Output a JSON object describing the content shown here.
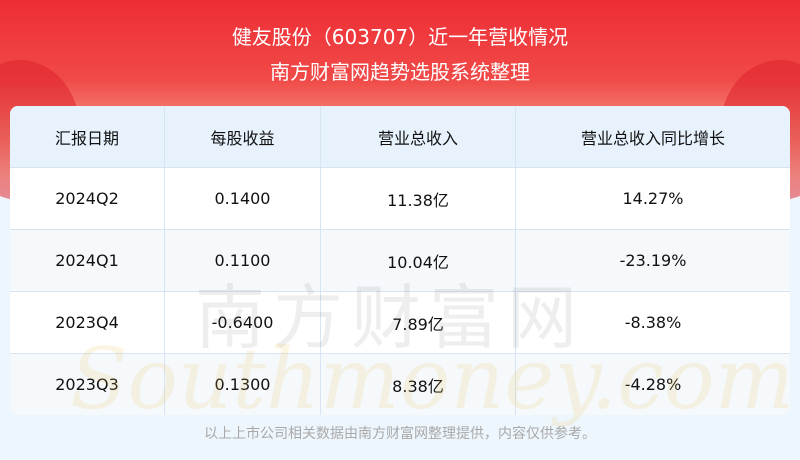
{
  "header": {
    "title": "健友股份（603707）近一年营收情况",
    "subtitle": "南方财富网趋势选股系统整理"
  },
  "table": {
    "columns": [
      "汇报日期",
      "每股收益",
      "营业总收入",
      "营业总收入同比增长"
    ],
    "rows": [
      [
        "2024Q2",
        "0.1400",
        "11.38亿",
        "14.27%"
      ],
      [
        "2024Q1",
        "0.1100",
        "10.04亿",
        "-23.19%"
      ],
      [
        "2023Q4",
        "-0.6400",
        "7.89亿",
        "-8.38%"
      ],
      [
        "2023Q3",
        "0.1300",
        "8.38亿",
        "-4.28%"
      ]
    ]
  },
  "watermark": {
    "cn": "南方财富网",
    "en": "Southmoney.com"
  },
  "footer": "以上上市公司相关数据由南方财富网整理提供，内容仅供参考。",
  "colors": {
    "banner": "#ee2d35",
    "header_bg": "#e7f2fd"
  }
}
